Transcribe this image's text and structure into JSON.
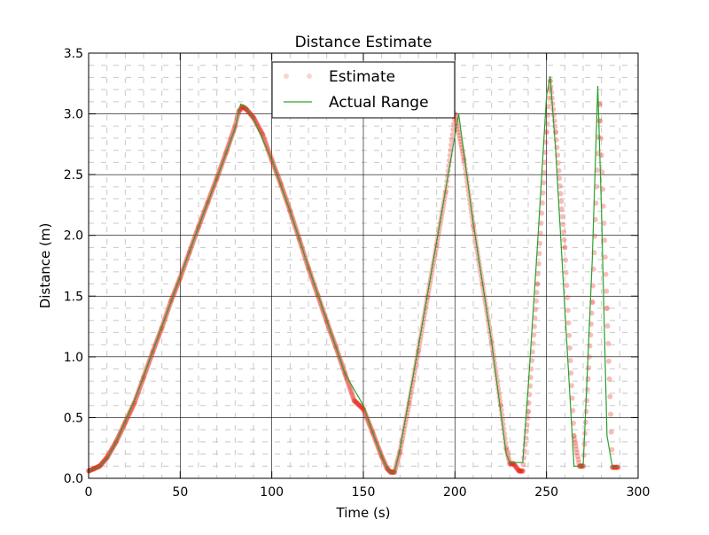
{
  "chart_data": {
    "type": "line",
    "title": "Distance Estimate",
    "xlabel": "Time (s)",
    "ylabel": "Distance (m)",
    "xlim": [
      0,
      300
    ],
    "ylim": [
      0,
      3.5
    ],
    "x_ticks": [
      0,
      50,
      100,
      150,
      200,
      250,
      300
    ],
    "x_tick_labels": [
      "0",
      "50",
      "100",
      "150",
      "200",
      "250",
      "300"
    ],
    "y_ticks": [
      0,
      0.5,
      1.0,
      1.5,
      2.0,
      2.5,
      3.0,
      3.5
    ],
    "y_tick_labels": [
      "0.0",
      "0.5",
      "1.0",
      "1.5",
      "2.0",
      "2.5",
      "3.0",
      "3.5"
    ],
    "grid": true,
    "minor_grid": true,
    "legend_position": "top-center",
    "series": [
      {
        "name": "Estimate",
        "style": "markers",
        "color": "#e8261c",
        "x": [
          0,
          3,
          6,
          10,
          15,
          20,
          25,
          30,
          35,
          40,
          45,
          50,
          55,
          60,
          65,
          70,
          75,
          80,
          82,
          84,
          86,
          90,
          95,
          100,
          105,
          110,
          115,
          120,
          125,
          130,
          135,
          140,
          145,
          150,
          155,
          160,
          163,
          165,
          167,
          170,
          175,
          180,
          185,
          190,
          195,
          200,
          205,
          210,
          215,
          220,
          225,
          228,
          230,
          232,
          235,
          237,
          240,
          245,
          250,
          252,
          255,
          260,
          265,
          268,
          270,
          275,
          279,
          283,
          286,
          289
        ],
        "y": [
          0.06,
          0.08,
          0.1,
          0.17,
          0.3,
          0.46,
          0.62,
          0.83,
          1.04,
          1.24,
          1.46,
          1.65,
          1.86,
          2.07,
          2.27,
          2.47,
          2.68,
          2.9,
          3.02,
          3.06,
          3.04,
          2.97,
          2.83,
          2.62,
          2.42,
          2.2,
          1.97,
          1.73,
          1.51,
          1.29,
          1.08,
          0.86,
          0.64,
          0.57,
          0.38,
          0.18,
          0.08,
          0.05,
          0.05,
          0.22,
          0.62,
          1.05,
          1.49,
          1.92,
          2.36,
          3.0,
          2.62,
          2.08,
          1.6,
          1.12,
          0.6,
          0.25,
          0.12,
          0.12,
          0.06,
          0.06,
          0.55,
          1.6,
          2.85,
          3.27,
          2.85,
          1.9,
          0.35,
          0.1,
          0.1,
          1.45,
          3.08,
          1.4,
          0.09,
          0.09
        ]
      },
      {
        "name": "Actual Range",
        "style": "line",
        "color": "#2ca02c",
        "x": [
          0,
          5,
          10,
          15,
          20,
          25,
          30,
          40,
          50,
          60,
          70,
          80,
          83,
          86,
          90,
          100,
          110,
          120,
          130,
          140,
          150,
          155,
          160,
          163,
          165,
          167,
          170,
          180,
          190,
          200,
          202,
          210,
          220,
          228,
          230,
          232,
          235,
          237,
          240,
          245,
          250,
          252,
          255,
          260,
          265,
          267,
          270,
          275,
          278,
          280,
          283,
          286,
          289
        ],
        "y": [
          0.06,
          0.09,
          0.16,
          0.3,
          0.47,
          0.64,
          0.84,
          1.25,
          1.66,
          2.07,
          2.47,
          2.88,
          3.08,
          3.05,
          2.96,
          2.62,
          2.2,
          1.74,
          1.3,
          0.86,
          0.6,
          0.38,
          0.18,
          0.08,
          0.05,
          0.05,
          0.24,
          1.08,
          1.95,
          2.82,
          3.0,
          2.1,
          1.12,
          0.2,
          0.13,
          0.13,
          0.13,
          0.13,
          0.75,
          1.9,
          3.15,
          3.31,
          2.7,
          1.4,
          0.1,
          0.1,
          0.1,
          1.8,
          3.23,
          2.2,
          0.35,
          0.09,
          0.09
        ]
      }
    ]
  }
}
